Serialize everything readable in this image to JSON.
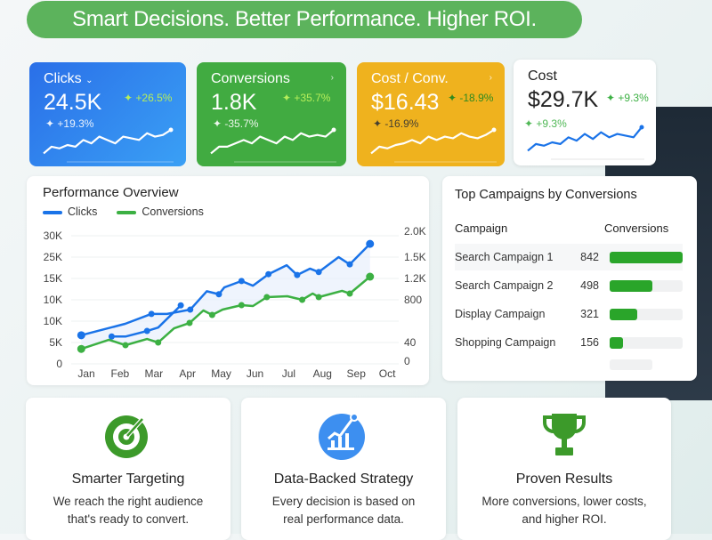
{
  "banner": "Smart Decisions. Better Performance. Higher ROI.",
  "kpis": [
    {
      "label": "Clicks",
      "chevron": "⌄",
      "value": "24.5K",
      "delta": "✦ +26.5%",
      "delta2": "✦ +19.3%",
      "color": "#2f7ff0",
      "spark": [
        2,
        4,
        3.5,
        4.5,
        4,
        6,
        5,
        7,
        6,
        5,
        7,
        6.5,
        6,
        8,
        7,
        7.5,
        9
      ]
    },
    {
      "label": "Conversions",
      "chevron": "›",
      "value": "1.8K",
      "delta": "✦ +35.7%",
      "delta2": "✦ -35.7%",
      "color": "#41ab41",
      "spark": [
        2,
        4,
        4,
        5,
        6,
        5,
        7,
        6,
        5,
        7,
        6,
        8,
        7,
        7.5,
        7,
        9
      ]
    },
    {
      "label": "Cost / Conv.",
      "chevron": "›",
      "value": "$16.43",
      "delta": "✦ -18.9%",
      "delta2": "✦ -16.9%",
      "color": "#efb21e",
      "spark": [
        2,
        4,
        3.5,
        4.5,
        5,
        6,
        5,
        7,
        6,
        7,
        6.5,
        8,
        7,
        6.5,
        7.5,
        9
      ]
    },
    {
      "label": "Cost",
      "chevron": "›",
      "value": "$29.7K",
      "delta": "✦ +9.3%",
      "delta2": "✦ +9.3%",
      "color": "#ffffff",
      "spark": [
        2,
        4,
        3.5,
        4.5,
        4,
        6,
        5,
        7,
        5.5,
        7.5,
        6,
        7,
        6.5,
        6,
        9
      ]
    }
  ],
  "performance": {
    "title": "Performance Overview",
    "chart_data": {
      "type": "line",
      "legend": [
        {
          "name": "Clicks",
          "color": "#1a73e8"
        },
        {
          "name": "Conversions",
          "color": "#3cb043"
        }
      ],
      "categories": [
        "Jan",
        "Feb",
        "Mar",
        "Apr",
        "May",
        "Jun",
        "Jul",
        "Aug",
        "Sep",
        "Oct"
      ],
      "left_ticks": [
        "30K",
        "25K",
        "15K",
        "10K",
        "10K",
        "5K",
        "0"
      ],
      "right_ticks": [
        "2.0K",
        "1.5K",
        "1.2K",
        "800",
        "40",
        "0"
      ],
      "ylim_left": [
        0,
        30000
      ],
      "series": [
        {
          "name": "Clicks",
          "axis": "left",
          "points": [
            [
              -0.15,
              6700
            ],
            [
              1.16,
              9400
            ],
            [
              1.93,
              11700
            ],
            [
              2.39,
              11700
            ],
            [
              3.08,
              12700
            ],
            [
              3.57,
              17000
            ],
            [
              3.93,
              16300
            ],
            [
              4.09,
              17900
            ],
            [
              4.6,
              19400
            ],
            [
              4.94,
              18300
            ],
            [
              5.4,
              21000
            ],
            [
              5.94,
              23100
            ],
            [
              6.25,
              20800
            ],
            [
              6.63,
              22300
            ],
            [
              6.89,
              21500
            ],
            [
              7.48,
              25000
            ],
            [
              7.81,
              23300
            ],
            [
              8.41,
              28100
            ]
          ]
        },
        {
          "name": "Clicks",
          "axis": "left",
          "points": [
            [
              0.75,
              6400
            ],
            [
              1.16,
              6400
            ],
            [
              1.8,
              7700
            ],
            [
              2.13,
              8500
            ],
            [
              2.8,
              13700
            ]
          ]
        },
        {
          "name": "Conversions",
          "axis": "right",
          "points": [
            [
              -0.15,
              28
            ],
            [
              0.67,
              88
            ],
            [
              1.16,
              35
            ],
            [
              1.8,
              103
            ],
            [
              2.13,
              40
            ],
            [
              2.6,
              293
            ],
            [
              3.06,
              388
            ],
            [
              3.47,
              610
            ],
            [
              3.73,
              531
            ],
            [
              4.04,
              626
            ],
            [
              4.6,
              705
            ],
            [
              4.94,
              689
            ],
            [
              5.35,
              850
            ],
            [
              5.96,
              867
            ],
            [
              6.4,
              800
            ],
            [
              6.71,
              917
            ],
            [
              6.89,
              850
            ],
            [
              7.58,
              967
            ],
            [
              7.81,
              917
            ],
            [
              8.41,
              1225
            ]
          ]
        }
      ]
    }
  },
  "campaigns": {
    "title": "Top Campaigns by Conversions",
    "col_campaign": "Campaign",
    "col_conversions": "Conversions",
    "rows": [
      {
        "name": "Search Campaign 1",
        "value": "842"
      },
      {
        "name": "Search Campaign 2",
        "value": "498"
      },
      {
        "name": "Display Campaign",
        "value": "321"
      },
      {
        "name": "Shopping Campaign",
        "value": "156"
      }
    ],
    "bar_color": "#2aa52a"
  },
  "features": [
    {
      "icon": "target-icon",
      "title": "Smarter Targeting",
      "line1": "We reach the right audience",
      "line2": "that's ready to convert."
    },
    {
      "icon": "growth-chart-icon",
      "title": "Data-Backed Strategy",
      "line1": "Every decision is based on",
      "line2": "real performance data."
    },
    {
      "icon": "trophy-icon",
      "title": "Proven Results",
      "line1": "More conversions, lower costs,",
      "line2": "and higher ROI."
    }
  ]
}
